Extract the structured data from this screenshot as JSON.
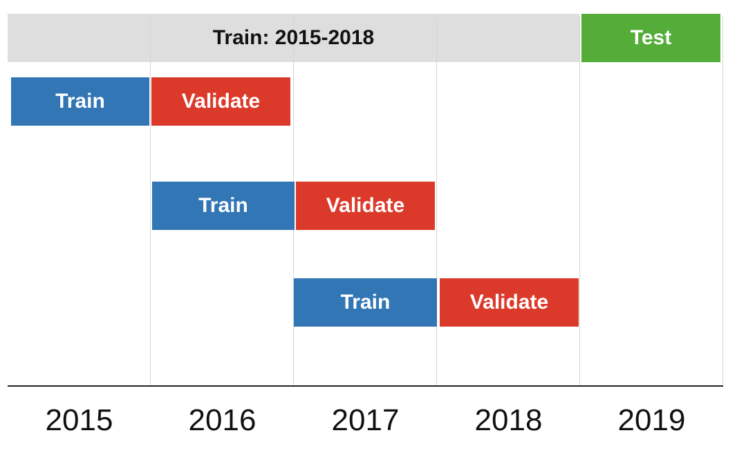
{
  "header": {
    "train_range_label": "Train: 2015-2018",
    "test_label": "Test"
  },
  "folds": [
    {
      "train_label": "Train",
      "validate_label": "Validate"
    },
    {
      "train_label": "Train",
      "validate_label": "Validate"
    },
    {
      "train_label": "Train",
      "validate_label": "Validate"
    }
  ],
  "years": [
    "2015",
    "2016",
    "2017",
    "2018",
    "2019"
  ],
  "colors": {
    "train": "#3376b5",
    "validate": "#db3a2b",
    "test": "#54ad38",
    "header": "#dedede"
  }
}
